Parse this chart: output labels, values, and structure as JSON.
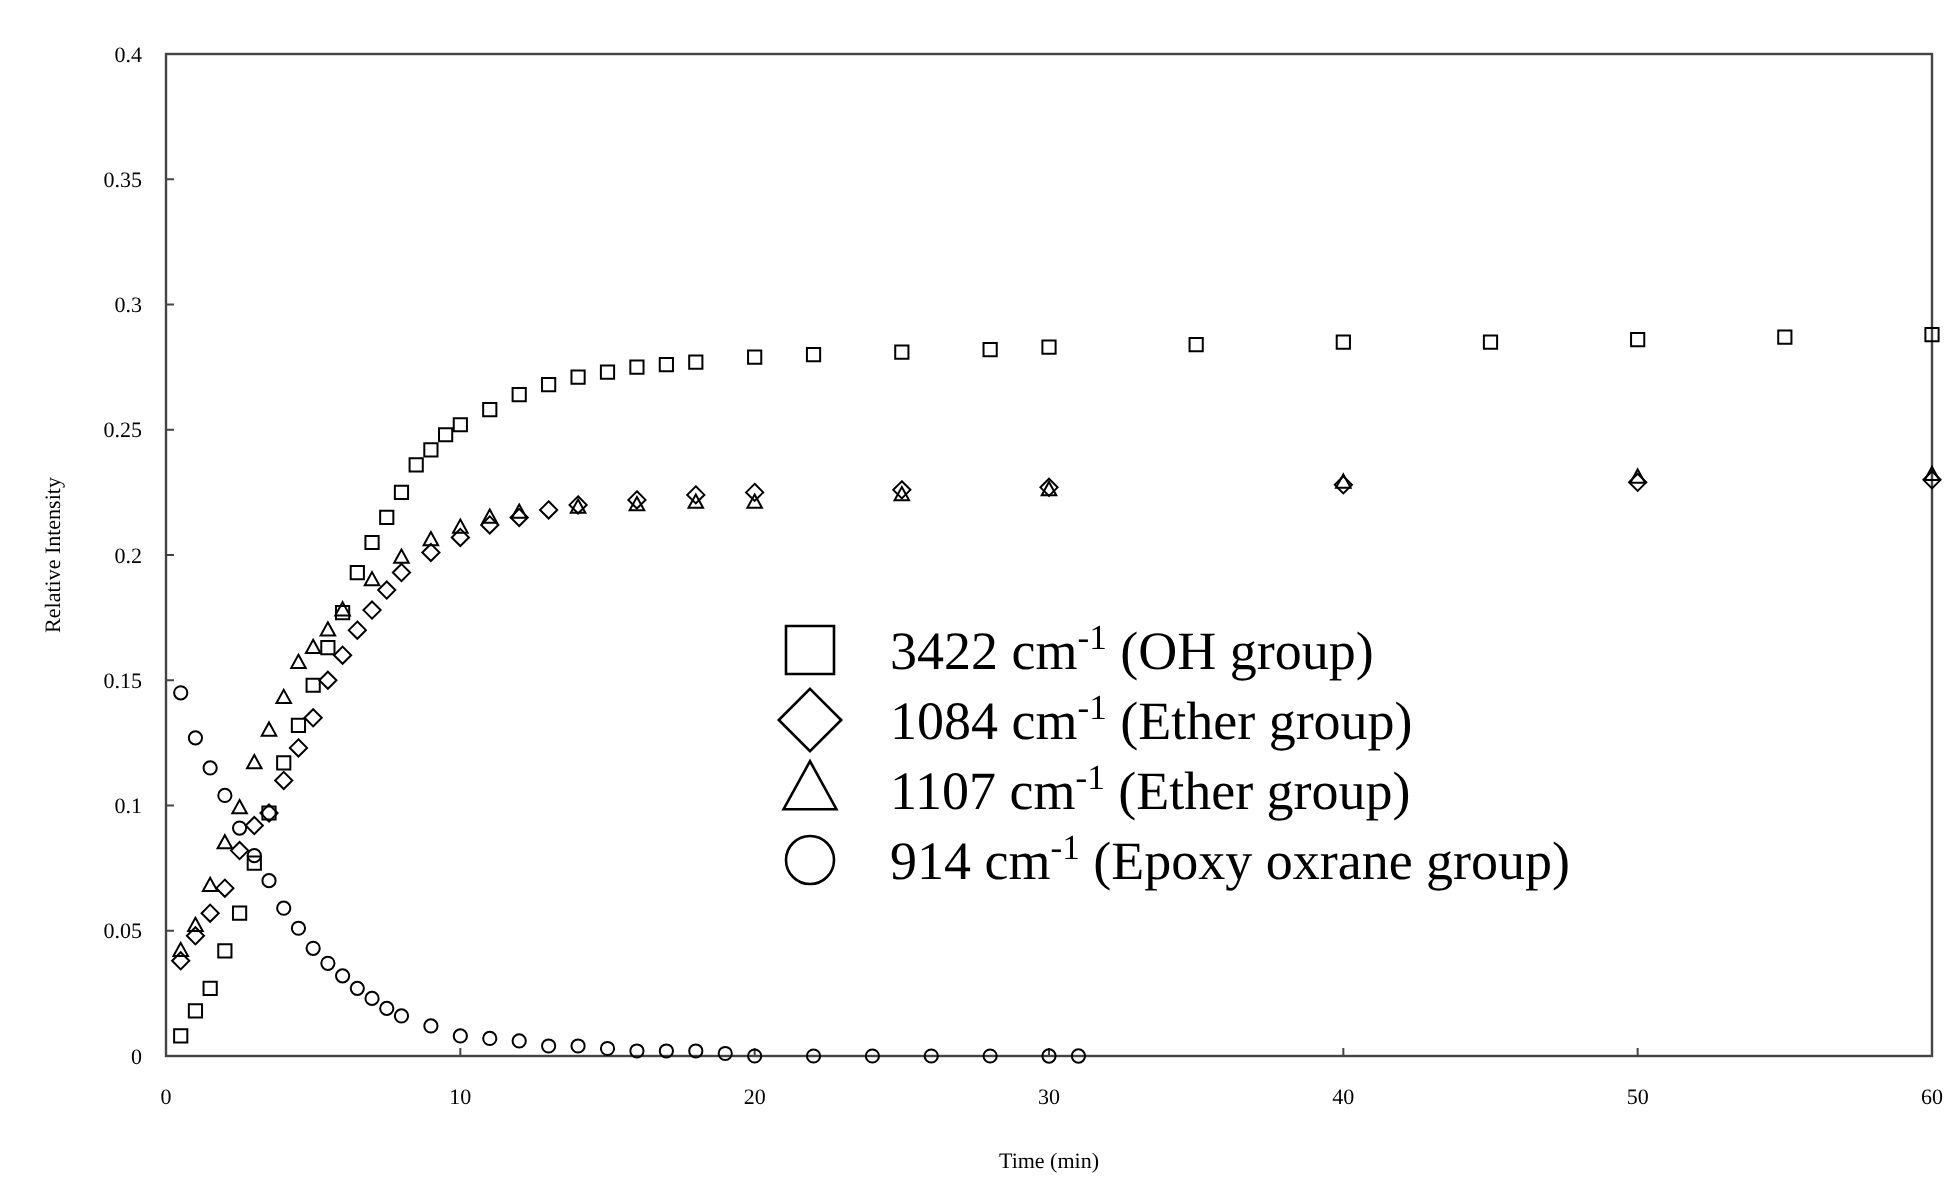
{
  "chart_data": {
    "type": "scatter",
    "xlabel": "Time (min)",
    "ylabel": "Relative Intensity",
    "xlim": [
      0,
      60
    ],
    "ylim": [
      0,
      0.4
    ],
    "xticks": [
      0,
      10,
      20,
      30,
      40,
      50,
      60
    ],
    "yticks": [
      0,
      0.05,
      0.1,
      0.15,
      0.2,
      0.25,
      0.3,
      0.35,
      0.4
    ],
    "grid": false,
    "legend": "right",
    "series": [
      {
        "name": "3422 cm$^{-1}$ (OH group)",
        "color": "#000000",
        "marker": "square",
        "x": [
          0.5,
          1,
          1.5,
          2,
          2.5,
          3,
          3.5,
          4,
          4.5,
          5,
          5.5,
          6,
          6.5,
          7,
          7.5,
          8,
          8.5,
          9,
          9.5,
          10,
          11,
          12,
          13,
          14,
          15,
          16,
          17,
          18,
          20,
          22,
          25,
          28,
          30,
          35,
          40,
          45,
          50,
          55,
          60
        ],
        "values": [
          0.008,
          0.018,
          0.027,
          0.042,
          0.057,
          0.077,
          0.097,
          0.117,
          0.132,
          0.148,
          0.163,
          0.177,
          0.193,
          0.205,
          0.215,
          0.225,
          0.236,
          0.242,
          0.248,
          0.252,
          0.258,
          0.264,
          0.268,
          0.271,
          0.273,
          0.275,
          0.276,
          0.277,
          0.279,
          0.28,
          0.281,
          0.282,
          0.283,
          0.284,
          0.285,
          0.285,
          0.286,
          0.287,
          0.288
        ]
      },
      {
        "name": "1084 cm$^{-1}$ (Ether group)",
        "color": "#000000",
        "marker": "diamond",
        "x": [
          0.5,
          1,
          1.5,
          2,
          2.5,
          3,
          3.5,
          4,
          4.5,
          5,
          5.5,
          6,
          6.5,
          7,
          7.5,
          8,
          9,
          10,
          11,
          12,
          13,
          14,
          16,
          18,
          20,
          25,
          30,
          40,
          50,
          60
        ],
        "values": [
          0.038,
          0.048,
          0.057,
          0.067,
          0.082,
          0.092,
          0.097,
          0.11,
          0.123,
          0.135,
          0.15,
          0.16,
          0.17,
          0.178,
          0.186,
          0.193,
          0.201,
          0.207,
          0.212,
          0.215,
          0.218,
          0.22,
          0.222,
          0.224,
          0.225,
          0.226,
          0.227,
          0.228,
          0.229,
          0.23
        ]
      },
      {
        "name": "1107 cm$^{-1}$ (Ether group)",
        "color": "#000000",
        "marker": "triangle",
        "x": [
          0.5,
          1,
          1.5,
          2,
          2.5,
          3,
          3.5,
          4,
          4.5,
          5,
          5.5,
          6,
          7,
          8,
          9,
          10,
          11,
          12,
          14,
          16,
          18,
          20,
          25,
          30,
          40,
          50,
          60
        ],
        "values": [
          0.042,
          0.052,
          0.068,
          0.085,
          0.099,
          0.117,
          0.13,
          0.143,
          0.157,
          0.163,
          0.17,
          0.178,
          0.19,
          0.199,
          0.206,
          0.211,
          0.215,
          0.217,
          0.219,
          0.22,
          0.221,
          0.221,
          0.224,
          0.226,
          0.229,
          0.231,
          0.232
        ]
      },
      {
        "name": "914 cm$^{-1}$ (Epoxy oxrane group)",
        "color": "#000000",
        "marker": "circle",
        "x": [
          0.5,
          1,
          1.5,
          2,
          2.5,
          3,
          3.5,
          4,
          4.5,
          5,
          5.5,
          6,
          6.5,
          7,
          7.5,
          8,
          9,
          10,
          11,
          12,
          13,
          14,
          15,
          16,
          17,
          18,
          19,
          20,
          22,
          24,
          26,
          28,
          30,
          31
        ],
        "values": [
          0.145,
          0.127,
          0.115,
          0.104,
          0.091,
          0.08,
          0.07,
          0.059,
          0.051,
          0.043,
          0.037,
          0.032,
          0.027,
          0.023,
          0.019,
          0.016,
          0.012,
          0.008,
          0.007,
          0.006,
          0.004,
          0.004,
          0.003,
          0.002,
          0.002,
          0.002,
          0.001,
          0,
          0,
          0,
          0,
          0,
          0,
          0
        ]
      }
    ]
  }
}
